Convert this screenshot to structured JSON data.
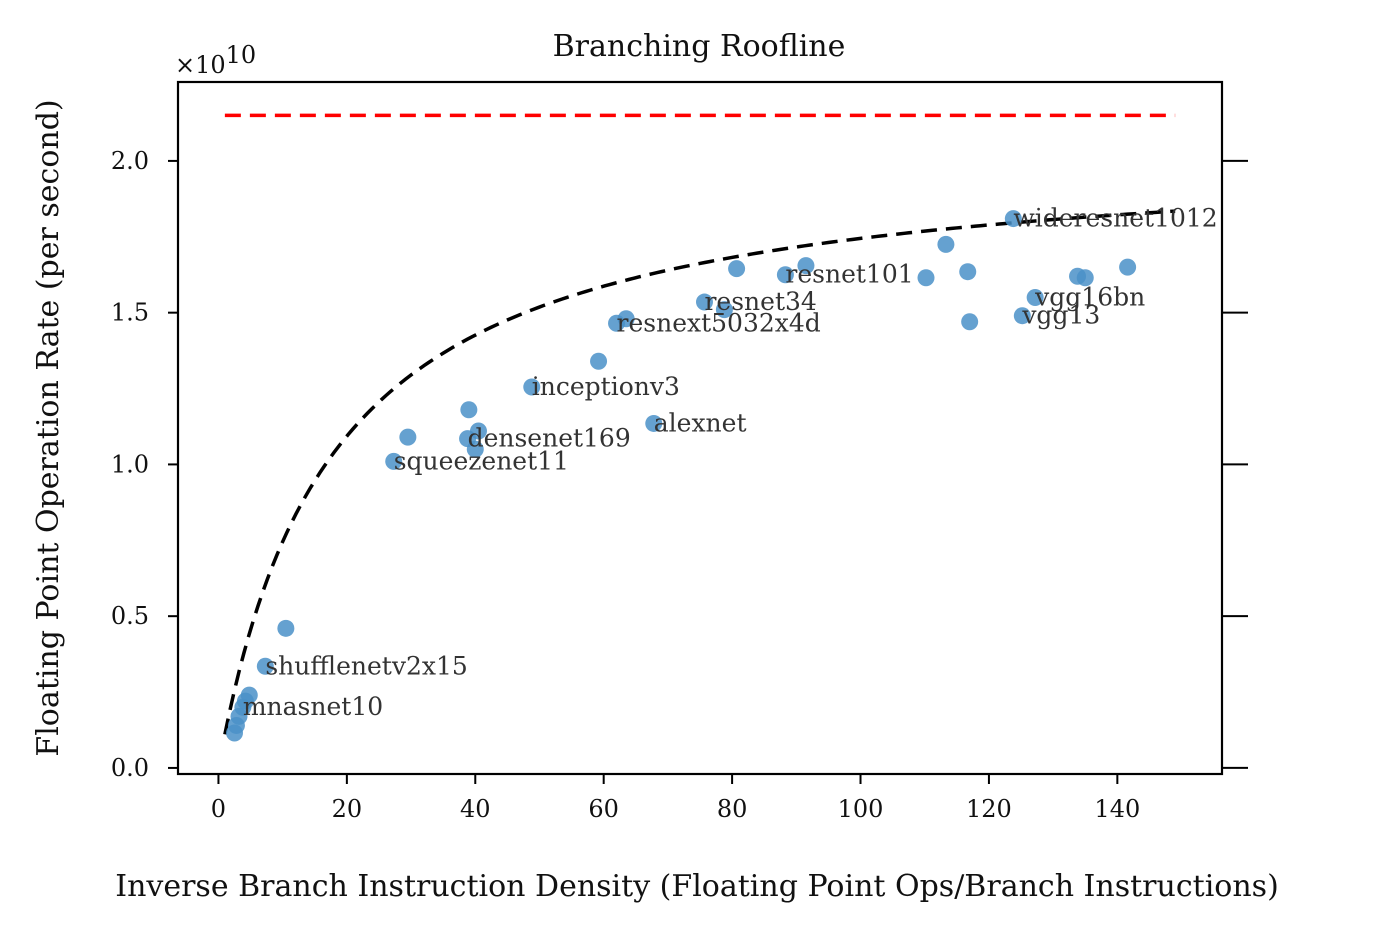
{
  "chart_data": {
    "type": "scatter",
    "title": "Branching Roofline",
    "xlabel": "Inverse Branch Instruction Density (Floating Point Ops/Branch Instructions)",
    "ylabel": "Floating Point Operation Rate (per second)",
    "y_scale_label": "×10",
    "y_scale_exponent": "10",
    "xlim": [
      -6.3,
      156.3
    ],
    "ylim": [
      -0.02,
      2.26
    ],
    "x_ticks": [
      0,
      20,
      40,
      60,
      80,
      100,
      120,
      140
    ],
    "x_tick_labels": [
      "0",
      "20",
      "40",
      "60",
      "80",
      "100",
      "120",
      "140"
    ],
    "y_ticks": [
      0.0,
      0.5,
      1.0,
      1.5,
      2.0
    ],
    "y_tick_labels": [
      "0.0",
      "0.5",
      "1.0",
      "1.5",
      "2.0"
    ],
    "peak_line": {
      "y": 2.15,
      "x_range": [
        1,
        149
      ],
      "color": "#ff0000",
      "style": "dashed"
    },
    "fit_curve": {
      "model": "a*x/(b+x)",
      "a": 2.05,
      "b": 17.5,
      "x_range": [
        1,
        149
      ],
      "color": "#000000",
      "style": "dashed"
    },
    "points_color": "#4a90c8",
    "points": [
      {
        "x": 2.5,
        "y": 0.115,
        "label": ""
      },
      {
        "x": 2.8,
        "y": 0.14,
        "label": ""
      },
      {
        "x": 3.2,
        "y": 0.17,
        "label": ""
      },
      {
        "x": 3.8,
        "y": 0.2,
        "label": "mnasnet10"
      },
      {
        "x": 4.2,
        "y": 0.22,
        "label": ""
      },
      {
        "x": 4.8,
        "y": 0.24,
        "label": ""
      },
      {
        "x": 7.3,
        "y": 0.335,
        "label": "shufflenetv2x15"
      },
      {
        "x": 10.5,
        "y": 0.46,
        "label": ""
      },
      {
        "x": 27.3,
        "y": 1.01,
        "label": "squeezenet11"
      },
      {
        "x": 29.5,
        "y": 1.09,
        "label": ""
      },
      {
        "x": 38.8,
        "y": 1.085,
        "label": "densenet169"
      },
      {
        "x": 39.0,
        "y": 1.18,
        "label": ""
      },
      {
        "x": 40.0,
        "y": 1.05,
        "label": ""
      },
      {
        "x": 40.5,
        "y": 1.11,
        "label": ""
      },
      {
        "x": 48.8,
        "y": 1.255,
        "label": "inceptionv3"
      },
      {
        "x": 59.2,
        "y": 1.34,
        "label": ""
      },
      {
        "x": 62.0,
        "y": 1.465,
        "label": "resnext5032x4d"
      },
      {
        "x": 63.5,
        "y": 1.48,
        "label": ""
      },
      {
        "x": 67.8,
        "y": 1.135,
        "label": "alexnet"
      },
      {
        "x": 75.7,
        "y": 1.535,
        "label": "resnet34"
      },
      {
        "x": 78.8,
        "y": 1.51,
        "label": ""
      },
      {
        "x": 80.7,
        "y": 1.645,
        "label": ""
      },
      {
        "x": 88.3,
        "y": 1.625,
        "label": "resnet101"
      },
      {
        "x": 91.5,
        "y": 1.655,
        "label": ""
      },
      {
        "x": 110.2,
        "y": 1.615,
        "label": ""
      },
      {
        "x": 113.3,
        "y": 1.725,
        "label": ""
      },
      {
        "x": 116.7,
        "y": 1.635,
        "label": ""
      },
      {
        "x": 117.0,
        "y": 1.47,
        "label": ""
      },
      {
        "x": 123.8,
        "y": 1.81,
        "label": "wideresnet1012"
      },
      {
        "x": 125.2,
        "y": 1.49,
        "label": "vgg13"
      },
      {
        "x": 127.2,
        "y": 1.55,
        "label": "vgg16bn"
      },
      {
        "x": 133.8,
        "y": 1.62,
        "label": ""
      },
      {
        "x": 135.0,
        "y": 1.615,
        "label": ""
      },
      {
        "x": 141.6,
        "y": 1.65,
        "label": ""
      }
    ]
  }
}
